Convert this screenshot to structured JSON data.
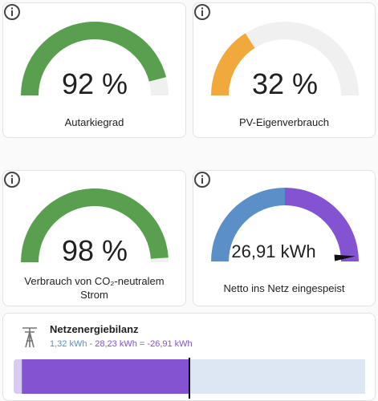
{
  "cards": [
    {
      "value": 92,
      "value_label": "92 %",
      "label": "Autarkiegrad",
      "color": "#5a9f4f"
    },
    {
      "value": 32,
      "value_label": "32 %",
      "label": "PV-Eigenverbrauch",
      "color": "#f2a93b"
    },
    {
      "value": 98,
      "value_label": "98 %",
      "label": "Verbrauch von CO₂-neutralem Strom",
      "color": "#5a9f4f"
    }
  ],
  "grid": {
    "value": 26.91,
    "value_label": "26,91 kWh",
    "label": "Netto ins Netz eingespeist",
    "from_color": "#5b8fc7",
    "to_color": "#8353d1"
  },
  "balance": {
    "title": "Netzenergiebilanz",
    "from_grid": {
      "value": 1.32,
      "label": "1,32 kWh"
    },
    "to_grid": {
      "value": 28.23,
      "label": "28,23 kWh"
    },
    "net": {
      "value": -26.91,
      "label": "-26,91 kWh"
    },
    "minus": "-",
    "equals": "="
  }
}
